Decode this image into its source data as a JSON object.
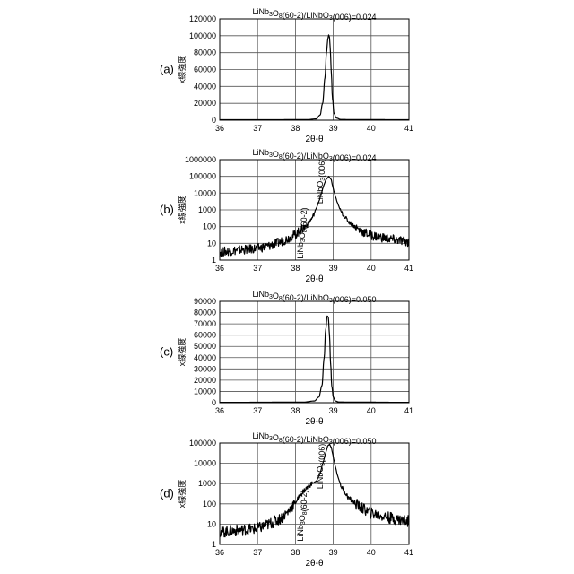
{
  "chart_data": [
    {
      "type": "line",
      "panel_label": "(a)",
      "title": "LiNb3O8(60-2)/LiNbO3(006)=0.024",
      "xlabel": "2θ-θ",
      "ylabel": "x線強度",
      "scale": "linear",
      "xlim": [
        36,
        41
      ],
      "ylim": [
        0,
        120000
      ],
      "xticks": [
        "36",
        "37",
        "38",
        "39",
        "40",
        "41"
      ],
      "yticks": [
        "0",
        "20000",
        "40000",
        "60000",
        "80000",
        "100000",
        "120000"
      ],
      "grid": true,
      "series": [
        {
          "x": [
            36,
            38.3,
            38.55,
            38.65,
            38.72,
            38.78,
            38.82,
            38.86,
            38.88,
            38.9,
            38.92,
            38.95,
            38.98,
            39.02,
            39.08,
            39.2,
            41
          ],
          "y": [
            500,
            600,
            1500,
            6000,
            20000,
            50000,
            80000,
            97000,
            101000,
            98000,
            85000,
            55000,
            25000,
            8000,
            2500,
            800,
            500
          ]
        }
      ],
      "annotations": []
    },
    {
      "type": "line",
      "panel_label": "(b)",
      "title": "LiNb3O8(60-2)/LiNbO3(006)=0.024",
      "xlabel": "2θ-θ",
      "ylabel": "x線強度",
      "scale": "log",
      "xlim": [
        36,
        41
      ],
      "ylim": [
        1,
        1000000
      ],
      "xticks": [
        "36",
        "37",
        "38",
        "39",
        "40",
        "41"
      ],
      "yticks": [
        "1",
        "10",
        "100",
        "1000",
        "10000",
        "100000",
        "1000000"
      ],
      "grid": true,
      "series": [
        {
          "x": [
            36,
            36.5,
            37,
            37.3,
            37.6,
            37.9,
            38.1,
            38.3,
            38.45,
            38.55,
            38.65,
            38.72,
            38.8,
            38.88,
            38.95,
            39.0,
            39.1,
            39.2,
            39.4,
            39.7,
            40.0,
            40.5,
            41
          ],
          "y": [
            3,
            4,
            5,
            7,
            12,
            25,
            50,
            120,
            350,
            1200,
            5000,
            18000,
            60000,
            100000,
            60000,
            18000,
            3000,
            800,
            200,
            60,
            30,
            18,
            12
          ]
        }
      ],
      "annotations": [
        "LiNb3O8(60-2)",
        "LiNbO3(006)"
      ]
    },
    {
      "type": "line",
      "panel_label": "(c)",
      "title": "LiNb3O8(60-2)/LiNbO3(006)=0.050",
      "xlabel": "2θ-θ",
      "ylabel": "x線強度",
      "scale": "linear",
      "xlim": [
        36,
        41
      ],
      "ylim": [
        0,
        90000
      ],
      "xticks": [
        "36",
        "37",
        "38",
        "39",
        "40",
        "41"
      ],
      "yticks": [
        "0",
        "10000",
        "20000",
        "30000",
        "40000",
        "50000",
        "60000",
        "70000",
        "80000",
        "90000"
      ],
      "grid": true,
      "series": [
        {
          "x": [
            36,
            38.2,
            38.5,
            38.62,
            38.7,
            38.76,
            38.8,
            38.84,
            38.87,
            38.9,
            38.93,
            38.96,
            39.0,
            39.05,
            39.15,
            41
          ],
          "y": [
            300,
            500,
            1500,
            5000,
            15000,
            40000,
            65000,
            77000,
            76000,
            60000,
            35000,
            15000,
            5000,
            1500,
            600,
            300
          ]
        }
      ],
      "annotations": []
    },
    {
      "type": "line",
      "panel_label": "(d)",
      "title": "LiNb3O8(60-2)/LiNbO3(006)=0.050",
      "xlabel": "2θ-θ",
      "ylabel": "x線強度",
      "scale": "log",
      "xlim": [
        36,
        41
      ],
      "ylim": [
        1,
        100000
      ],
      "xticks": [
        "36",
        "37",
        "38",
        "39",
        "40",
        "41"
      ],
      "yticks": [
        "1",
        "10",
        "100",
        "1000",
        "10000",
        "100000"
      ],
      "grid": true,
      "series": [
        {
          "x": [
            36,
            36.5,
            37,
            37.3,
            37.6,
            37.8,
            38.0,
            38.2,
            38.4,
            38.55,
            38.65,
            38.75,
            38.85,
            38.9,
            38.95,
            39.0,
            39.1,
            39.2,
            39.4,
            39.7,
            40.0,
            40.5,
            41
          ],
          "y": [
            4,
            5,
            6,
            10,
            18,
            40,
            120,
            400,
            900,
            1300,
            3000,
            15000,
            70000,
            85000,
            60000,
            20000,
            3000,
            800,
            200,
            70,
            35,
            20,
            14
          ]
        }
      ],
      "annotations": [
        "LiNb3O8(60-2)",
        "LiNbO3(006)"
      ]
    }
  ]
}
